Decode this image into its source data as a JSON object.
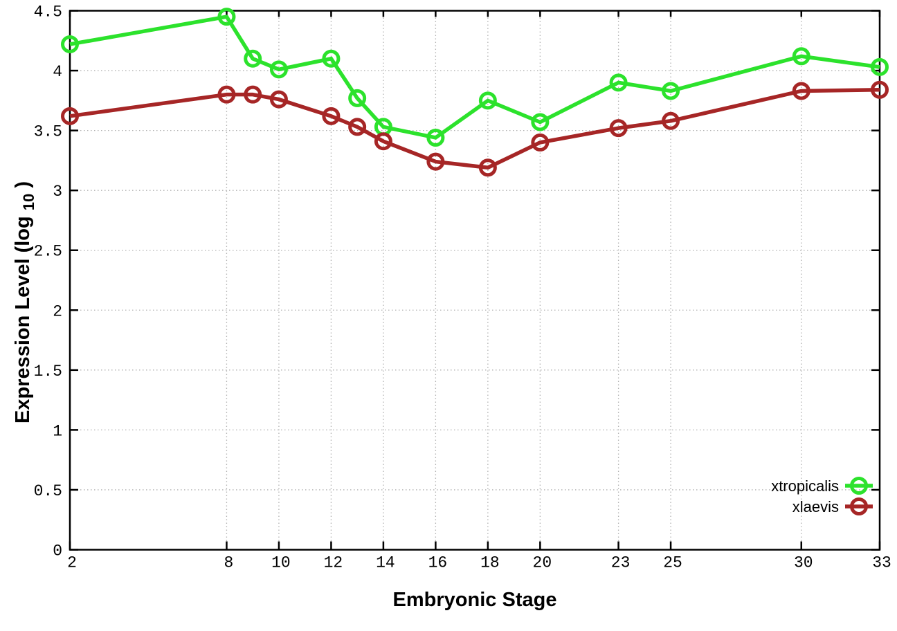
{
  "chart_data": {
    "type": "line",
    "title": "",
    "xlabel": "Embryonic Stage",
    "ylabel": "Expression Level (log10)",
    "ylabel_parts": {
      "prefix": "Expression Level (log",
      "sub": "10",
      "suffix": ")"
    },
    "x": [
      2,
      8,
      9,
      10,
      12,
      13,
      14,
      16,
      18,
      20,
      23,
      25,
      30,
      33
    ],
    "series": [
      {
        "name": "xtropicalis",
        "color": "#2ce22c",
        "values": [
          4.22,
          4.45,
          4.1,
          4.01,
          4.1,
          3.77,
          3.53,
          3.44,
          3.75,
          3.57,
          3.9,
          3.83,
          4.12,
          4.03
        ]
      },
      {
        "name": "xlaevis",
        "color": "#a62626",
        "values": [
          3.62,
          3.8,
          3.8,
          3.76,
          3.62,
          3.53,
          3.41,
          3.24,
          3.19,
          3.4,
          3.52,
          3.58,
          3.83,
          3.84
        ]
      }
    ],
    "xlim": [
      2,
      33
    ],
    "ylim": [
      0,
      4.5
    ],
    "x_ticks": {
      "values": [
        2,
        8,
        10,
        12,
        14,
        16,
        18,
        20,
        23,
        25,
        30,
        33
      ],
      "labels": [
        "2",
        "8",
        "10",
        "12",
        "14",
        "16",
        "18",
        "20",
        "23",
        "25",
        "30",
        "33"
      ]
    },
    "y_ticks": {
      "values": [
        0,
        0.5,
        1,
        1.5,
        2,
        2.5,
        3,
        3.5,
        4,
        4.5
      ],
      "labels": [
        "0",
        "0.5",
        "1",
        "1.5",
        "2",
        "2.5",
        "3",
        "3.5",
        "4",
        "4.5"
      ]
    },
    "grid": true,
    "legend_position": "bottom-right",
    "colors": {
      "background": "#ffffff",
      "axis": "#000000",
      "grid": "#b0b0b0",
      "text": "#000000"
    },
    "marker": "open-circle",
    "line_style": "solid"
  }
}
